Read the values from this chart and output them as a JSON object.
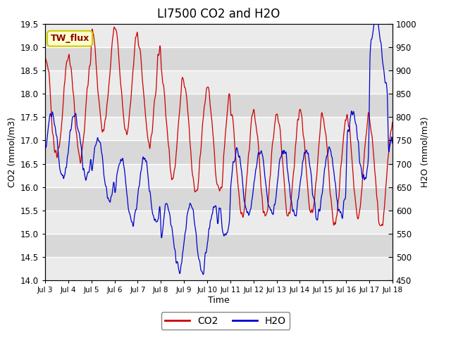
{
  "title": "LI7500 CO2 and H2O",
  "xlabel": "Time",
  "ylabel_left": "CO2 (mmol/m3)",
  "ylabel_right": "H2O (mmol/m3)",
  "ylim_left": [
    14.0,
    19.5
  ],
  "ylim_right": [
    450,
    1000
  ],
  "x_tick_labels": [
    "Jul 3",
    "Jul 4",
    "Jul 5",
    "Jul 6",
    "Jul 7",
    "Jul 8",
    "Jul 9",
    "Jul 10",
    "Jul 11",
    "Jul 12",
    "Jul 13",
    "Jul 14",
    "Jul 15",
    "Jul 16",
    "Jul 17",
    "Jul 18"
  ],
  "annotation_text": "TW_flux",
  "annotation_color": "#8B0000",
  "annotation_bg": "#FFFFCC",
  "co2_color": "#CC0000",
  "h2o_color": "#0000CC",
  "background_color": "#FFFFFF",
  "plot_bg_light": "#EBEBEB",
  "plot_bg_dark": "#D8D8D8",
  "grid_color": "#FFFFFF",
  "title_fontsize": 12,
  "legend_co2": "CO2",
  "legend_h2o": "H2O",
  "n_points": 1500,
  "yticks_left": [
    14.0,
    14.5,
    15.0,
    15.5,
    16.0,
    16.5,
    17.0,
    17.5,
    18.0,
    18.5,
    19.0,
    19.5
  ],
  "yticks_right": [
    450,
    500,
    550,
    600,
    650,
    700,
    750,
    800,
    850,
    900,
    950,
    1000
  ]
}
